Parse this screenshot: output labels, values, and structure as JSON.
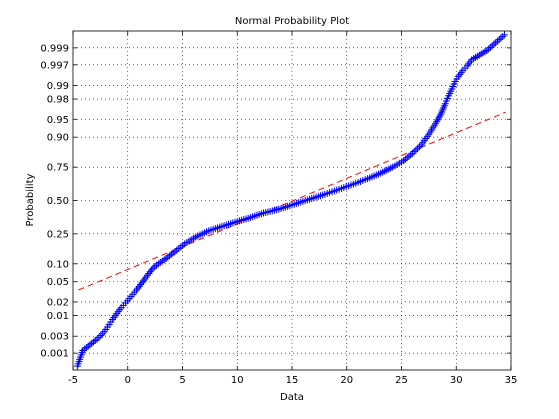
{
  "chart_data": {
    "type": "scatter",
    "title": "Normal Probability Plot",
    "xlabel": "Data",
    "ylabel": "Probability",
    "xlim": [
      -5,
      35
    ],
    "y_scale": "normal-probability",
    "grid": "dotted",
    "x_ticks": [
      -5,
      0,
      5,
      10,
      15,
      20,
      25,
      30,
      35
    ],
    "y_ticks": [
      {
        "p": 0.001,
        "label": "0.001"
      },
      {
        "p": 0.003,
        "label": "0.003"
      },
      {
        "p": 0.01,
        "label": "0.01"
      },
      {
        "p": 0.02,
        "label": "0.02"
      },
      {
        "p": 0.05,
        "label": "0.05"
      },
      {
        "p": 0.1,
        "label": "0.10"
      },
      {
        "p": 0.25,
        "label": "0.25"
      },
      {
        "p": 0.5,
        "label": "0.50"
      },
      {
        "p": 0.75,
        "label": "0.75"
      },
      {
        "p": 0.9,
        "label": "0.90"
      },
      {
        "p": 0.95,
        "label": "0.95"
      },
      {
        "p": 0.98,
        "label": "0.98"
      },
      {
        "p": 0.99,
        "label": "0.99"
      },
      {
        "p": 0.997,
        "label": "0.997"
      },
      {
        "p": 0.999,
        "label": "0.999"
      }
    ],
    "series": [
      {
        "marker": "+",
        "color": "#0000ff",
        "points": [
          {
            "x": -4.6,
            "p": 0.0004
          },
          {
            "x": -4.1,
            "p": 0.0012
          },
          {
            "x": -2.8,
            "p": 0.0025
          },
          {
            "x": -2.3,
            "p": 0.0035
          },
          {
            "x": -2.0,
            "p": 0.0045
          },
          {
            "x": -1.7,
            "p": 0.006
          },
          {
            "x": -1.4,
            "p": 0.008
          },
          {
            "x": -1.0,
            "p": 0.011
          },
          {
            "x": -0.6,
            "p": 0.015
          },
          {
            "x": -0.2,
            "p": 0.019
          },
          {
            "x": 0.3,
            "p": 0.026
          },
          {
            "x": 0.8,
            "p": 0.035
          },
          {
            "x": 1.3,
            "p": 0.048
          },
          {
            "x": 1.8,
            "p": 0.065
          },
          {
            "x": 2.3,
            "p": 0.085
          },
          {
            "x": 2.8,
            "p": 0.1
          },
          {
            "x": 3.5,
            "p": 0.12
          },
          {
            "x": 4.3,
            "p": 0.15
          },
          {
            "x": 5.2,
            "p": 0.19
          },
          {
            "x": 6.2,
            "p": 0.23
          },
          {
            "x": 7.4,
            "p": 0.27
          },
          {
            "x": 8.6,
            "p": 0.3
          },
          {
            "x": 9.8,
            "p": 0.33
          },
          {
            "x": 11.0,
            "p": 0.36
          },
          {
            "x": 12.4,
            "p": 0.4
          },
          {
            "x": 13.8,
            "p": 0.43
          },
          {
            "x": 15.2,
            "p": 0.47
          },
          {
            "x": 16.6,
            "p": 0.51
          },
          {
            "x": 18.0,
            "p": 0.55
          },
          {
            "x": 19.3,
            "p": 0.59
          },
          {
            "x": 20.6,
            "p": 0.63
          },
          {
            "x": 21.9,
            "p": 0.67
          },
          {
            "x": 23.1,
            "p": 0.71
          },
          {
            "x": 24.2,
            "p": 0.75
          },
          {
            "x": 25.2,
            "p": 0.79
          },
          {
            "x": 26.0,
            "p": 0.83
          },
          {
            "x": 26.8,
            "p": 0.87
          },
          {
            "x": 27.5,
            "p": 0.91
          },
          {
            "x": 28.1,
            "p": 0.94
          },
          {
            "x": 28.6,
            "p": 0.96
          },
          {
            "x": 29.0,
            "p": 0.975
          },
          {
            "x": 29.3,
            "p": 0.983
          },
          {
            "x": 29.6,
            "p": 0.988
          },
          {
            "x": 29.9,
            "p": 0.992
          },
          {
            "x": 30.2,
            "p": 0.994
          },
          {
            "x": 30.6,
            "p": 0.9958
          },
          {
            "x": 31.0,
            "p": 0.9968
          },
          {
            "x": 31.4,
            "p": 0.9978
          },
          {
            "x": 32.8,
            "p": 0.9988
          },
          {
            "x": 34.4,
            "p": 0.9996
          }
        ]
      }
    ],
    "reference_line": {
      "color": "#ff0000",
      "style": "dashed",
      "from": {
        "x": -4.5,
        "p": 0.035
      },
      "to": {
        "x": 34.5,
        "p": 0.963
      }
    }
  }
}
